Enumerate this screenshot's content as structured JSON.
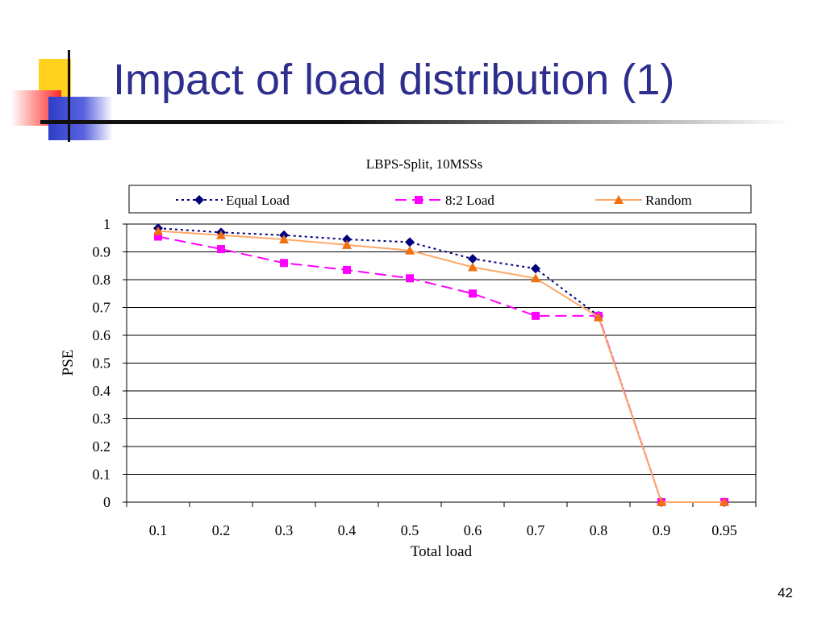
{
  "slide": {
    "title": "Impact of load distribution (1)",
    "page_number": "42"
  },
  "colors": {
    "title": "#2e2e8e",
    "equal_load": "#00007f",
    "load_82": "#ff00ff",
    "random_line": "#ffa868",
    "random_marker": "#f07010"
  },
  "chart_data": {
    "type": "line",
    "title": "LBPS-Split, 10MSSs",
    "xlabel": "Total load",
    "ylabel": "PSE",
    "categories": [
      "0.1",
      "0.2",
      "0.3",
      "0.4",
      "0.5",
      "0.6",
      "0.7",
      "0.8",
      "0.9",
      "0.95"
    ],
    "yticks": [
      "0",
      "0.1",
      "0.2",
      "0.3",
      "0.4",
      "0.5",
      "0.6",
      "0.7",
      "0.8",
      "0.9",
      "1"
    ],
    "ylim": [
      0,
      1
    ],
    "grid": true,
    "legend_position": "top",
    "series": [
      {
        "name": "Equal Load",
        "marker": "diamond",
        "line_style": "dotted",
        "color": "#00007f",
        "values": [
          0.985,
          0.97,
          0.96,
          0.945,
          0.935,
          0.875,
          0.84,
          0.67,
          0.0,
          0.0
        ]
      },
      {
        "name": "8:2 Load",
        "marker": "square",
        "line_style": "dashed",
        "color": "#ff00ff",
        "values": [
          0.955,
          0.91,
          0.86,
          0.835,
          0.805,
          0.75,
          0.67,
          0.67,
          0.0,
          0.0
        ]
      },
      {
        "name": "Random",
        "marker": "triangle",
        "line_style": "solid",
        "color": "#ffa868",
        "values": [
          0.975,
          0.96,
          0.945,
          0.925,
          0.905,
          0.845,
          0.805,
          0.665,
          0.0,
          0.0
        ]
      }
    ]
  }
}
